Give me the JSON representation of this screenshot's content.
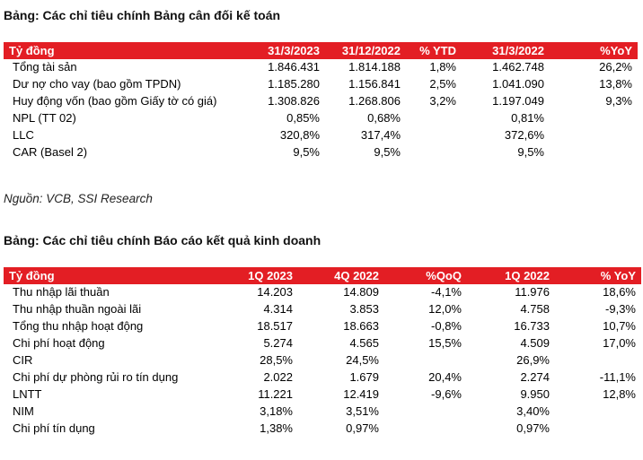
{
  "balance_sheet": {
    "caption": "Bảng: Các chỉ tiêu chính Bảng cân đối kế toán",
    "headers": [
      "Tỷ đồng",
      "31/3/2023",
      "31/12/2022",
      "% YTD",
      "31/3/2022",
      "%YoY"
    ],
    "rows": [
      [
        "Tổng tài sản",
        "1.846.431",
        "1.814.188",
        "1,8%",
        "1.462.748",
        "26,2%"
      ],
      [
        "Dư nợ cho vay (bao gồm TPDN)",
        "1.185.280",
        "1.156.841",
        "2,5%",
        "1.041.090",
        "13,8%"
      ],
      [
        "Huy động vốn (bao gồm Giấy tờ có giá)",
        "1.308.826",
        "1.268.806",
        "3,2%",
        "1.197.049",
        "9,3%"
      ],
      [
        "NPL (TT 02)",
        "0,85%",
        "0,68%",
        "",
        "0,81%",
        ""
      ],
      [
        "LLC",
        "320,8%",
        "317,4%",
        "",
        "372,6%",
        ""
      ],
      [
        "CAR (Basel 2)",
        "9,5%",
        "9,5%",
        "",
        "9,5%",
        ""
      ]
    ],
    "source": "Nguồn: VCB, SSI Research"
  },
  "income_statement": {
    "caption": "Bảng: Các chỉ tiêu chính Báo cáo kết quả kinh doanh",
    "headers": [
      "Tỷ đồng",
      "1Q 2023",
      "4Q 2022",
      "%QoQ",
      "1Q 2022",
      "% YoY"
    ],
    "rows": [
      [
        "Thu nhập lãi thuần",
        "14.203",
        "14.809",
        "-4,1%",
        "11.976",
        "18,6%"
      ],
      [
        "Thu nhập thuần ngoài lãi",
        "4.314",
        "3.853",
        "12,0%",
        "4.758",
        "-9,3%"
      ],
      [
        "Tổng thu nhập hoạt động",
        "18.517",
        "18.663",
        "-0,8%",
        "16.733",
        "10,7%"
      ],
      [
        "Chi phí hoạt động",
        "5.274",
        "4.565",
        "15,5%",
        "4.509",
        "17,0%"
      ],
      [
        "CIR",
        "28,5%",
        "24,5%",
        "",
        "26,9%",
        ""
      ],
      [
        "Chi phí dự phòng rủi ro tín dụng",
        "2.022",
        "1.679",
        "20,4%",
        "2.274",
        "-11,1%"
      ],
      [
        "LNTT",
        "11.221",
        "12.419",
        "-9,6%",
        "9.950",
        "12,8%"
      ],
      [
        "NIM",
        "3,18%",
        "3,51%",
        "",
        "3,40%",
        ""
      ],
      [
        "Chi phí tín dụng",
        "1,38%",
        "0,97%",
        "",
        "0,97%",
        ""
      ]
    ]
  }
}
